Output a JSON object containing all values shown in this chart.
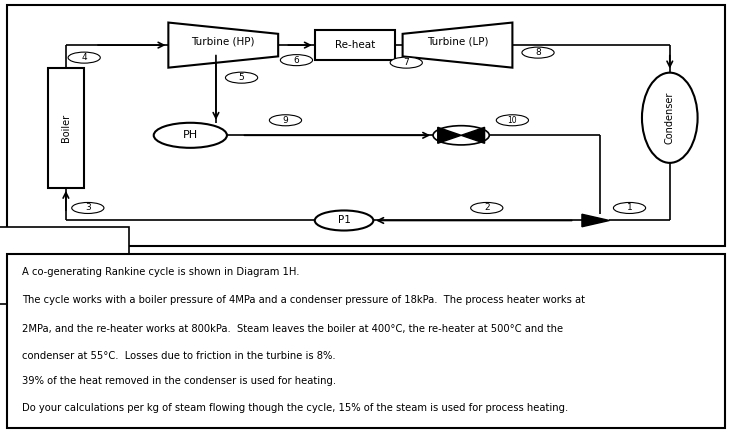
{
  "title": "Diagram 1H",
  "description_lines": [
    "A co-generating Rankine cycle is shown in Diagram 1H.",
    "The cycle works with a boiler pressure of 4MPa and a condenser pressure of 18kPa.  The process heater works at",
    "2MPa, and the re-heater works at 800kPa.  Steam leaves the boiler at 400°C, the re-heater at 500°C and the",
    "condenser at 55°C.  Losses due to friction in the turbine is 8%.",
    "39% of the heat removed in the condenser is used for heating.",
    "Do your calculations per kg of steam flowing though the cycle, 15% of the steam is used for process heating."
  ],
  "bg_color": "#ffffff",
  "ec": "#000000",
  "lw": 1.2,
  "diagram_ratio": 0.58,
  "text_ratio": 0.42
}
